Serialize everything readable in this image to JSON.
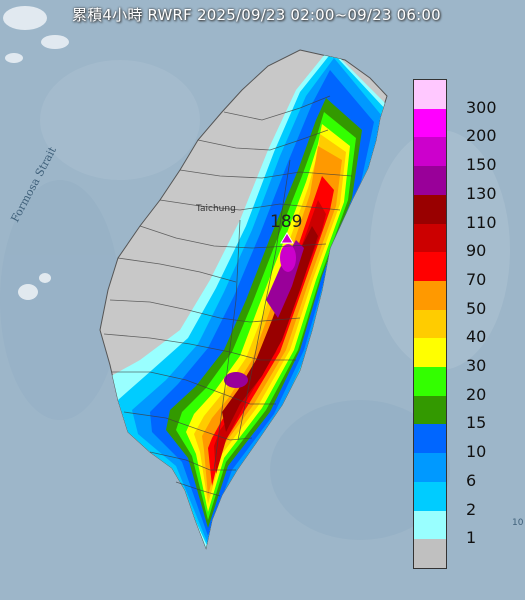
{
  "title": "累積4小時 RWRF 2025/09/23 02:00~09/23 06:00",
  "map_labels": {
    "strait": "Formosa Strait",
    "city": "Taichung",
    "peak_value": "189",
    "edge_mark": "10"
  },
  "legend": [
    {
      "label": "300",
      "color": "#ffc8ff"
    },
    {
      "label": "200",
      "color": "#ff00ff"
    },
    {
      "label": "150",
      "color": "#cc00cc"
    },
    {
      "label": "130",
      "color": "#990099"
    },
    {
      "label": "110",
      "color": "#990000"
    },
    {
      "label": "90",
      "color": "#cc0000"
    },
    {
      "label": "70",
      "color": "#ff0000"
    },
    {
      "label": "50",
      "color": "#ff9900"
    },
    {
      "label": "40",
      "color": "#ffcc00"
    },
    {
      "label": "30",
      "color": "#ffff00"
    },
    {
      "label": "20",
      "color": "#33ff00"
    },
    {
      "label": "15",
      "color": "#339900"
    },
    {
      "label": "10",
      "color": "#0066ff"
    },
    {
      "label": "6",
      "color": "#0099ff"
    },
    {
      "label": "2",
      "color": "#00ccff"
    },
    {
      "label": "1",
      "color": "#99ffff"
    },
    {
      "label": "",
      "color": "#c0c0c0"
    }
  ]
}
